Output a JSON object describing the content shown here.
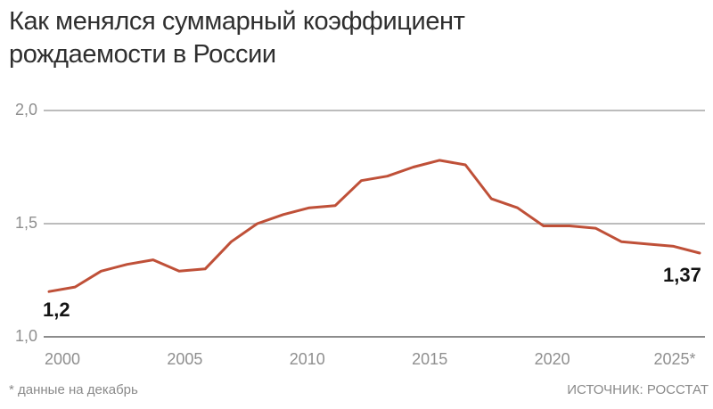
{
  "title": {
    "line1": "Как менялся суммарный коэффициент",
    "line2": "рождаемости в России"
  },
  "chart_data": {
    "type": "line",
    "title": "Как менялся суммарный коэффициент рождаемости в России",
    "xlabel": "",
    "ylabel": "",
    "x": [
      2000,
      2001,
      2002,
      2003,
      2004,
      2005,
      2006,
      2007,
      2008,
      2009,
      2010,
      2011,
      2012,
      2013,
      2014,
      2015,
      2016,
      2017,
      2018,
      2019,
      2020,
      2021,
      2022,
      2023,
      2024,
      2025
    ],
    "values": [
      1.2,
      1.22,
      1.29,
      1.32,
      1.34,
      1.29,
      1.3,
      1.42,
      1.5,
      1.54,
      1.57,
      1.58,
      1.69,
      1.71,
      1.75,
      1.78,
      1.76,
      1.61,
      1.57,
      1.49,
      1.49,
      1.48,
      1.42,
      1.41,
      1.4,
      1.37
    ],
    "ylim": [
      1.0,
      2.0
    ],
    "grid": true,
    "legend": false,
    "yticks": [
      {
        "value": 2.0,
        "label": "2,0"
      },
      {
        "value": 1.5,
        "label": "1,5"
      },
      {
        "value": 1.0,
        "label": "1,0"
      }
    ],
    "xticks": [
      "2000",
      "2005",
      "2010",
      "2015",
      "2020",
      "2025*"
    ],
    "point_labels": [
      {
        "year": 2000,
        "value": 1.2,
        "text": "1,2"
      },
      {
        "year": 2025,
        "value": 1.37,
        "text": "1,37"
      }
    ],
    "colors": {
      "line": "#bf5038",
      "grid": "#a6a6a6",
      "grid_bottom": "#8c8c8c",
      "axis_text": "#8f8f8f",
      "title_text": "#2f2f2f",
      "annotation_text": "#141414",
      "footer_text": "#8a8a8a"
    }
  },
  "footer": {
    "note": "* данные на декабрь",
    "source": "ИСТОЧНИК: РОССТАТ"
  }
}
